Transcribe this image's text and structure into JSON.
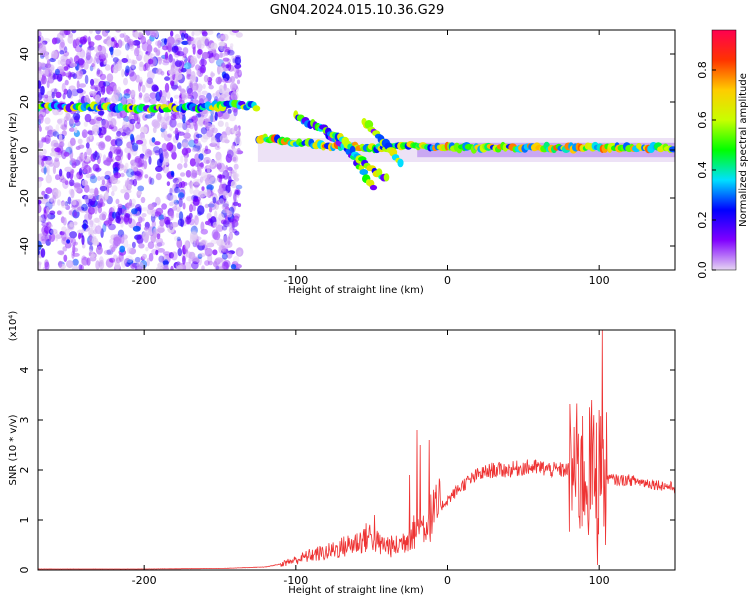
{
  "title": "GN04.2024.015.10.36.G29",
  "chart_data": [
    {
      "type": "heatmap",
      "name": "spectrogram",
      "xlabel": "Height of straight line (km)",
      "ylabel": "Frequency (Hz)",
      "xlim": [
        -270,
        150
      ],
      "ylim": [
        -50,
        50
      ],
      "xticks": [
        -200,
        -100,
        0,
        100
      ],
      "yticks": [
        -40,
        -20,
        0,
        20,
        40
      ],
      "colorbar": {
        "label": "Normalized spectral amplitude",
        "range": [
          0.0,
          0.96
        ],
        "ticks": [
          "0.0",
          "0.2",
          "0.4",
          "0.6",
          "0.8"
        ],
        "colormap": [
          "#e6d6f2",
          "#8000ff",
          "#0000ff",
          "#00e0ff",
          "#00ff00",
          "#c8ff00",
          "#ffcc00",
          "#ff3300",
          "#ff0050"
        ]
      },
      "ridges": [
        {
          "x": [
            -270,
            -240,
            -200,
            -160,
            -140,
            -125
          ],
          "y": [
            18,
            18,
            17,
            18,
            19,
            18
          ],
          "amp": 0.45
        },
        {
          "x": [
            -125,
            -100,
            -80,
            -60,
            -40,
            -20,
            0,
            40,
            80,
            100,
            150
          ],
          "y": [
            5,
            3,
            2,
            1,
            1,
            2,
            1,
            1,
            1,
            1,
            1
          ],
          "amp": 0.55
        },
        {
          "x": [
            -100,
            -80,
            -65,
            -55,
            -48
          ],
          "y": [
            14,
            8,
            0,
            -10,
            -17
          ],
          "amp": 0.4
        },
        {
          "x": [
            -85,
            -70,
            -60,
            -50,
            -40
          ],
          "y": [
            10,
            5,
            -2,
            -8,
            -12
          ],
          "amp": 0.45
        },
        {
          "x": [
            -55,
            -45,
            -38,
            -30
          ],
          "y": [
            12,
            6,
            0,
            -6
          ],
          "amp": 0.4
        }
      ]
    },
    {
      "type": "line",
      "name": "snr",
      "xlabel": "Height of straight line (km)",
      "ylabel": "SNR (10 * v/v)",
      "exponent_label": "(x10⁴)",
      "xlim": [
        -270,
        150
      ],
      "ylim": [
        0,
        4.8
      ],
      "xticks": [
        -200,
        -100,
        0,
        100
      ],
      "yticks": [
        0,
        1,
        2,
        3,
        4
      ],
      "color": "#ee3333",
      "envelope": {
        "x": [
          -270,
          -200,
          -150,
          -120,
          -110,
          -100,
          -90,
          -80,
          -70,
          -60,
          -50,
          -45,
          -40,
          -35,
          -30,
          -25,
          -20,
          -15,
          -10,
          0,
          10,
          20,
          30,
          40,
          50,
          60,
          70,
          80,
          85,
          90,
          95,
          100,
          102,
          105,
          110,
          120,
          130,
          140,
          150
        ],
        "y": [
          0.02,
          0.02,
          0.03,
          0.06,
          0.12,
          0.2,
          0.3,
          0.35,
          0.45,
          0.55,
          0.7,
          0.5,
          0.5,
          0.45,
          0.55,
          0.7,
          0.8,
          0.9,
          1.1,
          1.4,
          1.7,
          1.9,
          2.0,
          2.0,
          2.05,
          2.05,
          2.0,
          2.0,
          1.95,
          1.95,
          1.9,
          1.9,
          1.85,
          1.85,
          1.8,
          1.8,
          1.75,
          1.7,
          1.65
        ]
      },
      "spikes": [
        {
          "x": -20,
          "y": 2.8
        },
        {
          "x": -18,
          "y": 2.5
        },
        {
          "x": -12,
          "y": 2.6
        },
        {
          "x": -25,
          "y": 1.9
        },
        {
          "x": -48,
          "y": 1.1
        },
        {
          "x": 85,
          "y": 2.9
        },
        {
          "x": 88,
          "y": 2.6
        },
        {
          "x": 95,
          "y": 3.4
        },
        {
          "x": 99,
          "y": 0.1
        },
        {
          "x": 102,
          "y": 4.8
        },
        {
          "x": 104,
          "y": 0.5
        },
        {
          "x": 100,
          "y": 3.2
        }
      ]
    }
  ]
}
